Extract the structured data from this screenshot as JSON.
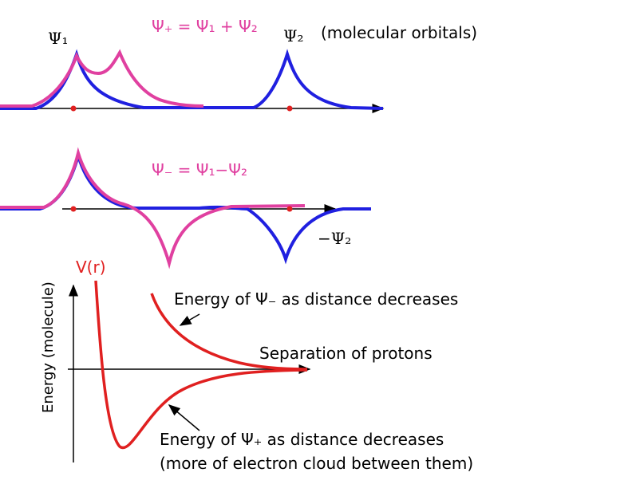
{
  "labels": {
    "psi1": "Ψ₁",
    "psi_plus": "Ψ₊ = Ψ₁ + Ψ₂",
    "psi2": "Ψ₂",
    "molecular_orbitals": "(molecular orbitals)",
    "psi_minus": "Ψ₋ = Ψ₁−Ψ₂",
    "minus_psi2": "−Ψ₂",
    "v_r": "V(r)",
    "y_axis": "Energy (molecule)",
    "energy_minus": "Energy of Ψ₋ as distance decreases",
    "separation": "Separation of protons",
    "energy_plus": "Energy of Ψ₊ as distance decreases",
    "energy_plus_note": "(more of electron cloud between them)"
  }
}
